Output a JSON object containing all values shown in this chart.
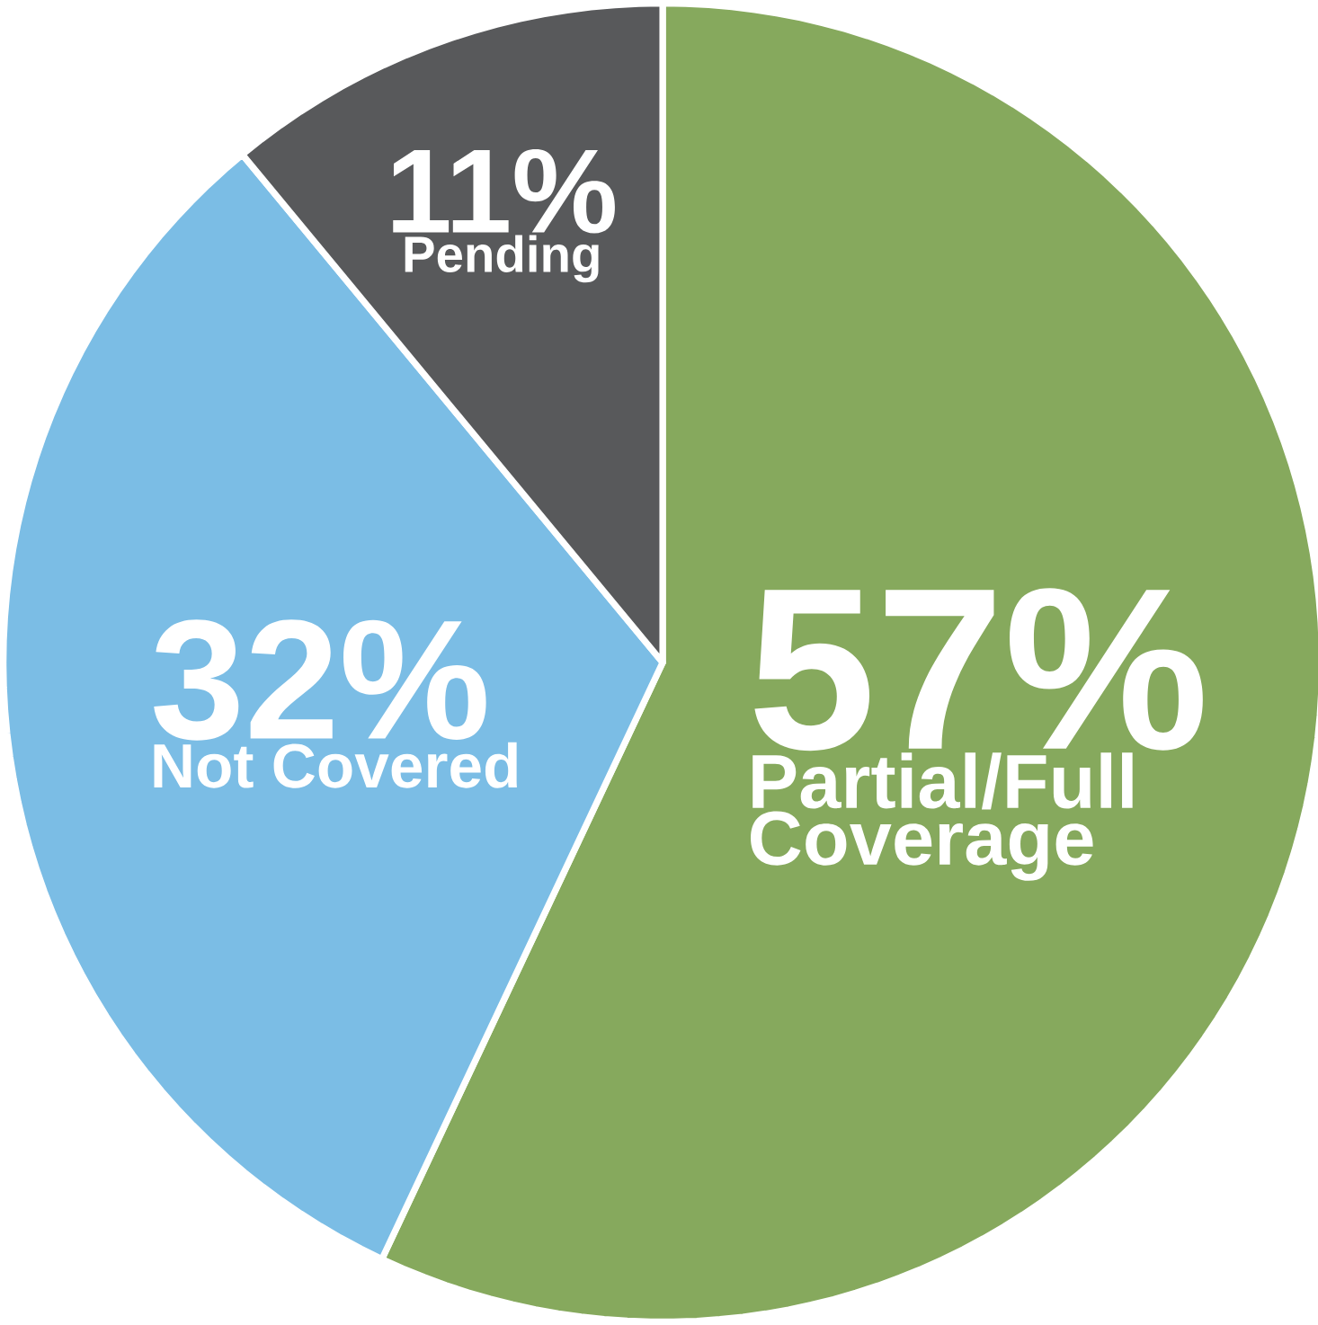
{
  "chart_data": {
    "type": "pie",
    "categories": [
      "Partial/Full Coverage",
      "Not Covered",
      "Pending"
    ],
    "values": [
      57,
      32,
      11
    ],
    "value_labels": [
      "57%",
      "32%",
      "11%"
    ],
    "colors": [
      "#86a95d",
      "#7bbde5",
      "#58595b"
    ]
  }
}
